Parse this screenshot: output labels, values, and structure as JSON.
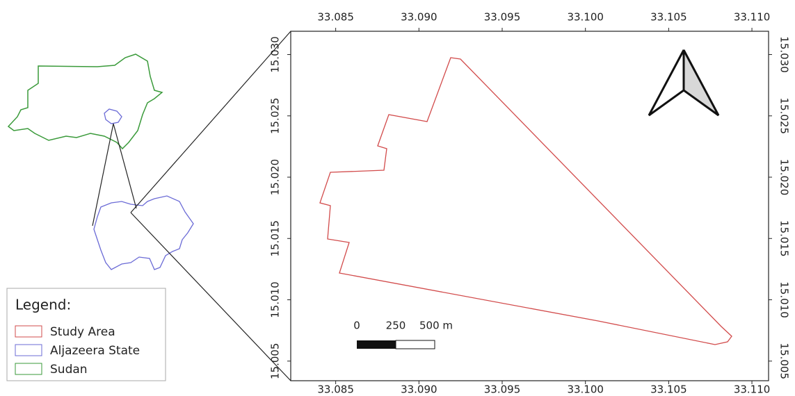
{
  "map": {
    "xlim": [
      33.0823,
      33.111
    ],
    "ylim": [
      15.0034,
      15.0319
    ],
    "xticks": [
      {
        "value": 33.085,
        "label": "33.085"
      },
      {
        "value": 33.09,
        "label": "33.090"
      },
      {
        "value": 33.095,
        "label": "33.095"
      },
      {
        "value": 33.1,
        "label": "33.100"
      },
      {
        "value": 33.105,
        "label": "33.105"
      },
      {
        "value": 33.11,
        "label": "33.110"
      }
    ],
    "yticks": [
      {
        "value": 15.005,
        "label": "15.005"
      },
      {
        "value": 15.01,
        "label": "15.010"
      },
      {
        "value": 15.015,
        "label": "15.015"
      },
      {
        "value": 15.02,
        "label": "15.020"
      },
      {
        "value": 15.025,
        "label": "15.025"
      },
      {
        "value": 15.03,
        "label": "15.030"
      }
    ],
    "legend": {
      "title": "Legend:",
      "items": [
        "Study Area",
        "Aljazeera State",
        "Sudan"
      ]
    },
    "scale_bar": [
      "0",
      "250",
      "500 m"
    ]
  }
}
